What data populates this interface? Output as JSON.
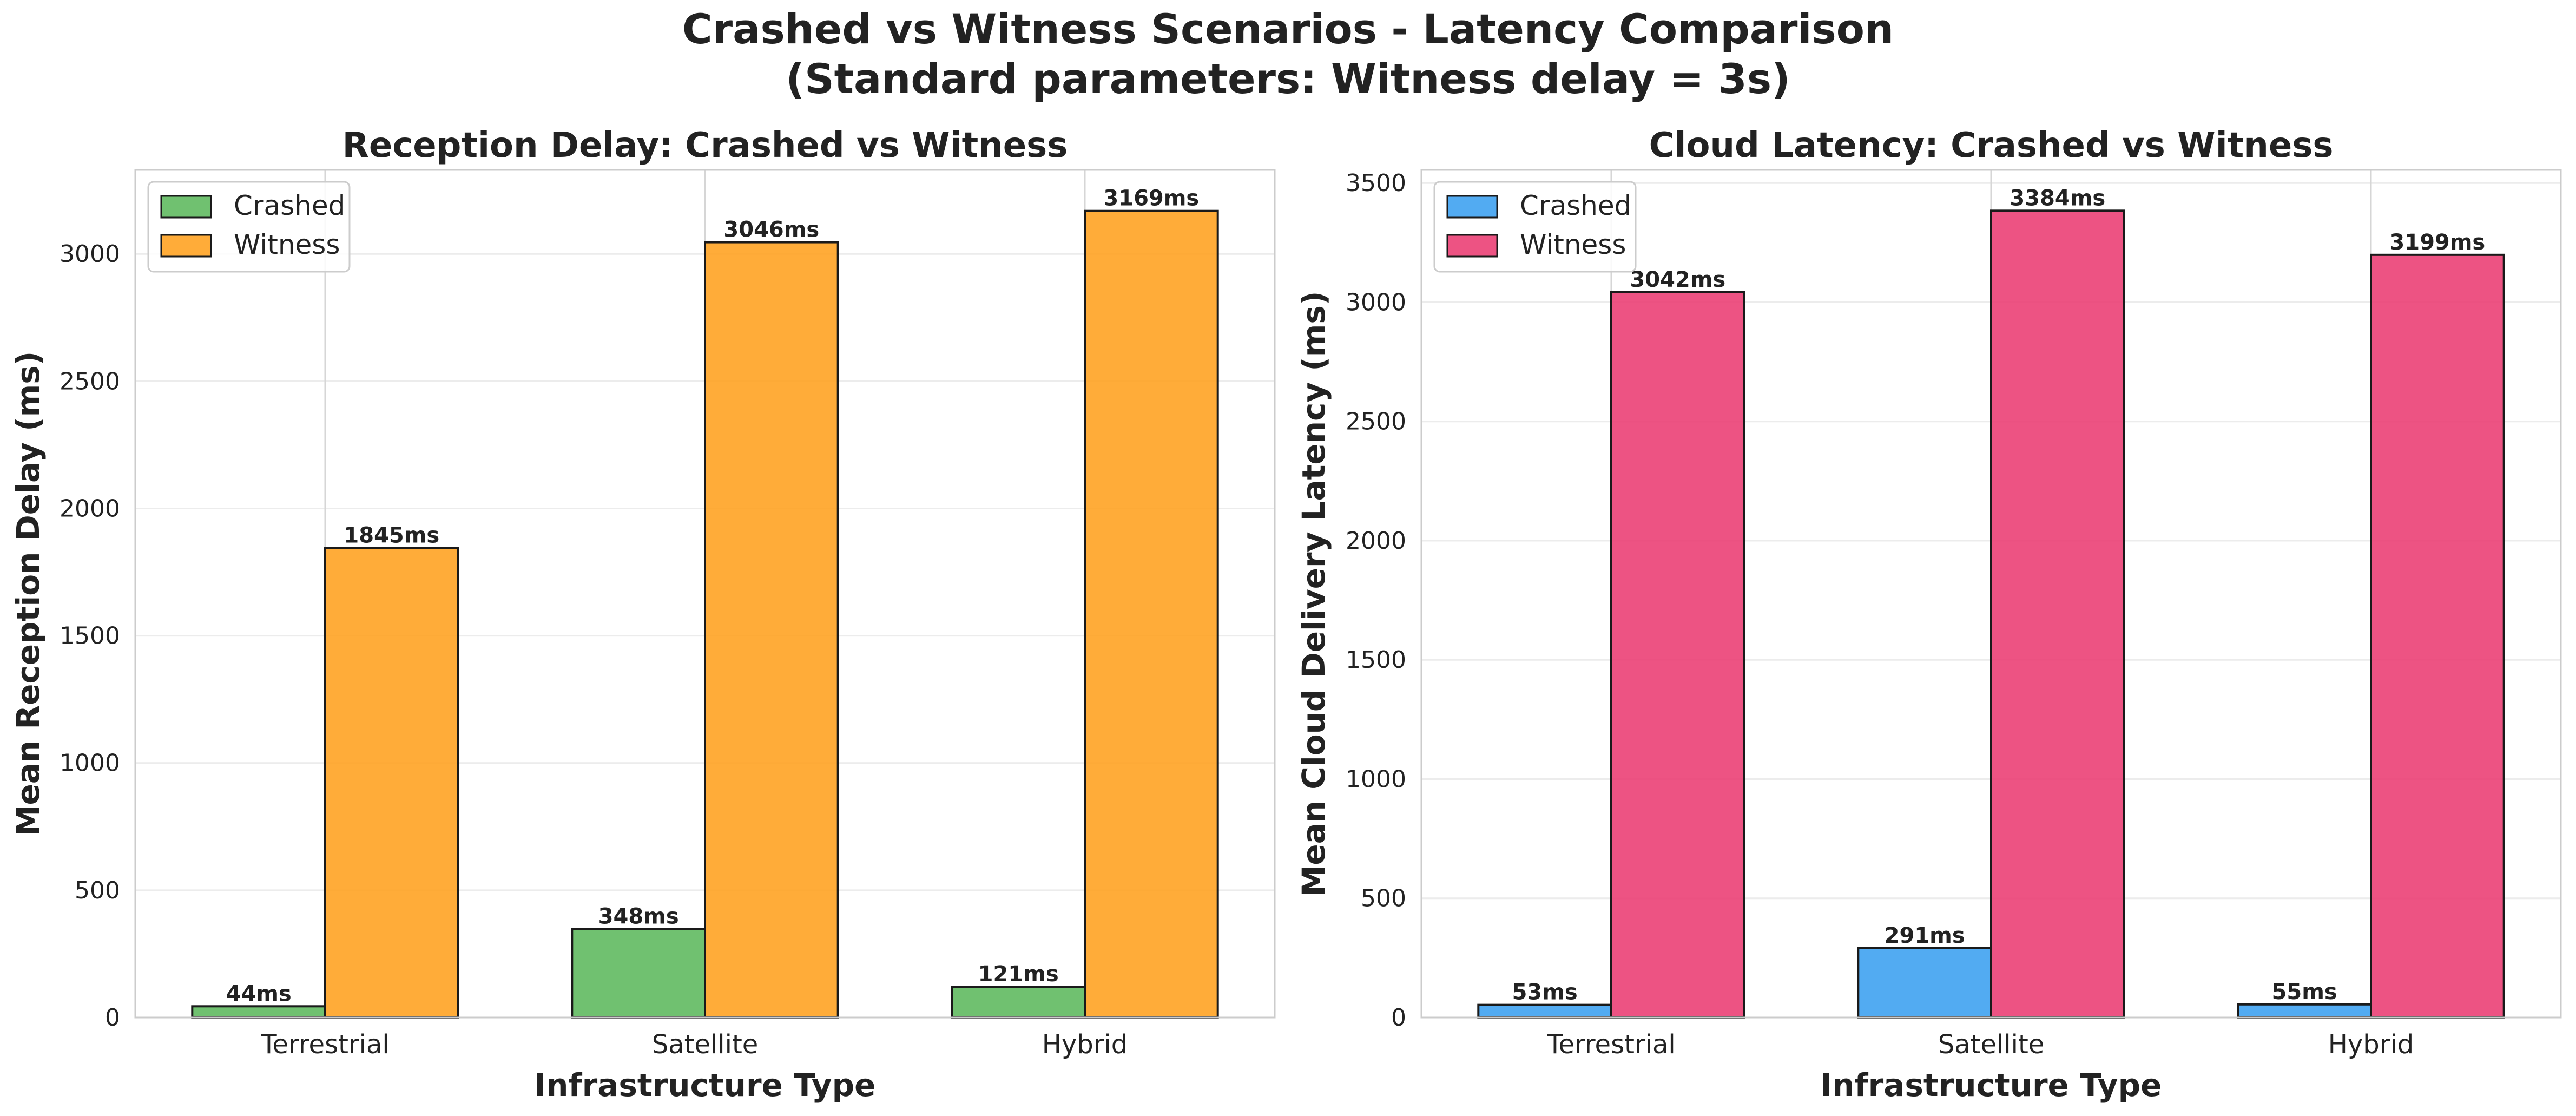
{
  "figure": {
    "title_line1": "Crashed vs Witness Scenarios - Latency Comparison",
    "title_line2": "(Standard parameters: Witness delay = 3s)"
  },
  "chart_data": [
    {
      "type": "bar",
      "title": "Reception Delay: Crashed vs Witness",
      "xlabel": "Infrastructure Type",
      "ylabel": "Mean Reception Delay (ms)",
      "categories": [
        "Terrestrial",
        "Satellite",
        "Hybrid"
      ],
      "ylim": [
        0,
        3330
      ],
      "yticks": [
        0,
        500,
        1000,
        1500,
        2000,
        2500,
        3000
      ],
      "grid": true,
      "legend_position": "top-left",
      "value_suffix": "ms",
      "series": [
        {
          "name": "Crashed",
          "color": "#5cb85c",
          "values": [
            44,
            348,
            121
          ]
        },
        {
          "name": "Witness",
          "color": "#ffa11e",
          "values": [
            1845,
            3046,
            3169
          ]
        }
      ]
    },
    {
      "type": "bar",
      "title": "Cloud Latency: Crashed vs Witness",
      "xlabel": "Infrastructure Type",
      "ylabel": "Mean Cloud Delivery Latency (ms)",
      "categories": [
        "Terrestrial",
        "Satellite",
        "Hybrid"
      ],
      "ylim": [
        0,
        3555
      ],
      "yticks": [
        0,
        500,
        1000,
        1500,
        2000,
        2500,
        3000,
        3500
      ],
      "grid": true,
      "legend_position": "top-left",
      "value_suffix": "ms",
      "series": [
        {
          "name": "Crashed",
          "color": "#3a9ff0",
          "values": [
            53,
            291,
            55
          ]
        },
        {
          "name": "Witness",
          "color": "#eb3b72",
          "values": [
            3042,
            3384,
            3199
          ]
        }
      ]
    }
  ]
}
